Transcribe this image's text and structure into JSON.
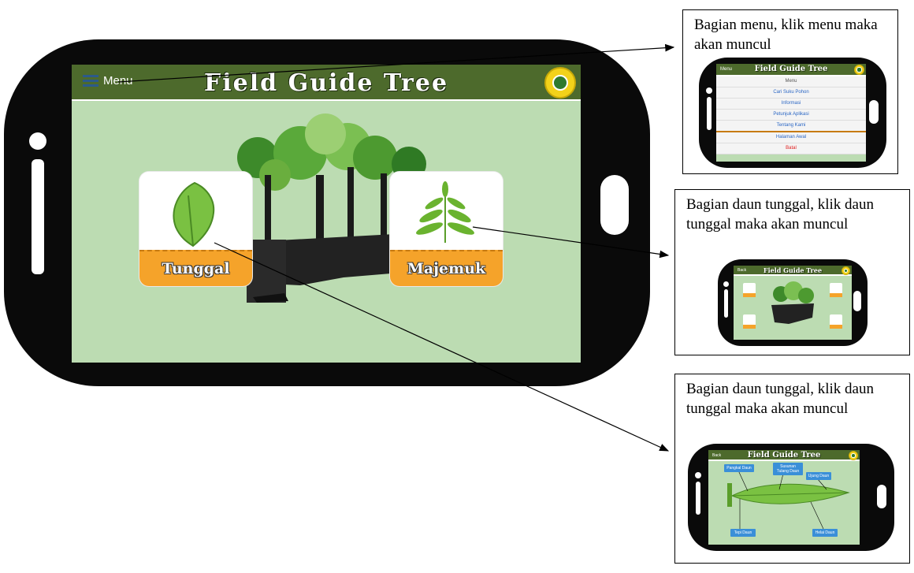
{
  "main_phone": {
    "menu_label": "Menu",
    "app_title": "Field Guide Tree",
    "cards": [
      {
        "label": "Tunggal",
        "icon": "single-leaf-icon"
      },
      {
        "label": "Majemuk",
        "icon": "compound-leaf-icon"
      }
    ],
    "colors": {
      "header": "#4d6a2c",
      "screen_bg": "#bcdcb2",
      "card_bottom": "#f5a32a"
    }
  },
  "callouts": [
    {
      "text": "Bagian menu, klik menu maka akan muncul",
      "mini": {
        "side_label": "Menu",
        "title": "Field Guide Tree",
        "menu_heading": "Menu",
        "menu_items": [
          "Cari Suku Pohon",
          "Informasi",
          "Petunjuk Aplikasi",
          "Tentang Kami",
          "Halaman Awal",
          "Batal"
        ]
      }
    },
    {
      "text": "Bagian daun tunggal, klik daun tunggal maka akan muncul",
      "mini": {
        "side_label": "Back",
        "title": "Field Guide Tree"
      }
    },
    {
      "text": "Bagian daun tunggal, klik daun tunggal maka akan muncul",
      "mini": {
        "side_label": "Back",
        "title": "Field Guide Tree",
        "part_labels": [
          "Pangkal Daun",
          "Susunan Tulang Daun",
          "Ujung Daun",
          "Tepi Daun",
          "Helai Daun"
        ]
      }
    }
  ]
}
